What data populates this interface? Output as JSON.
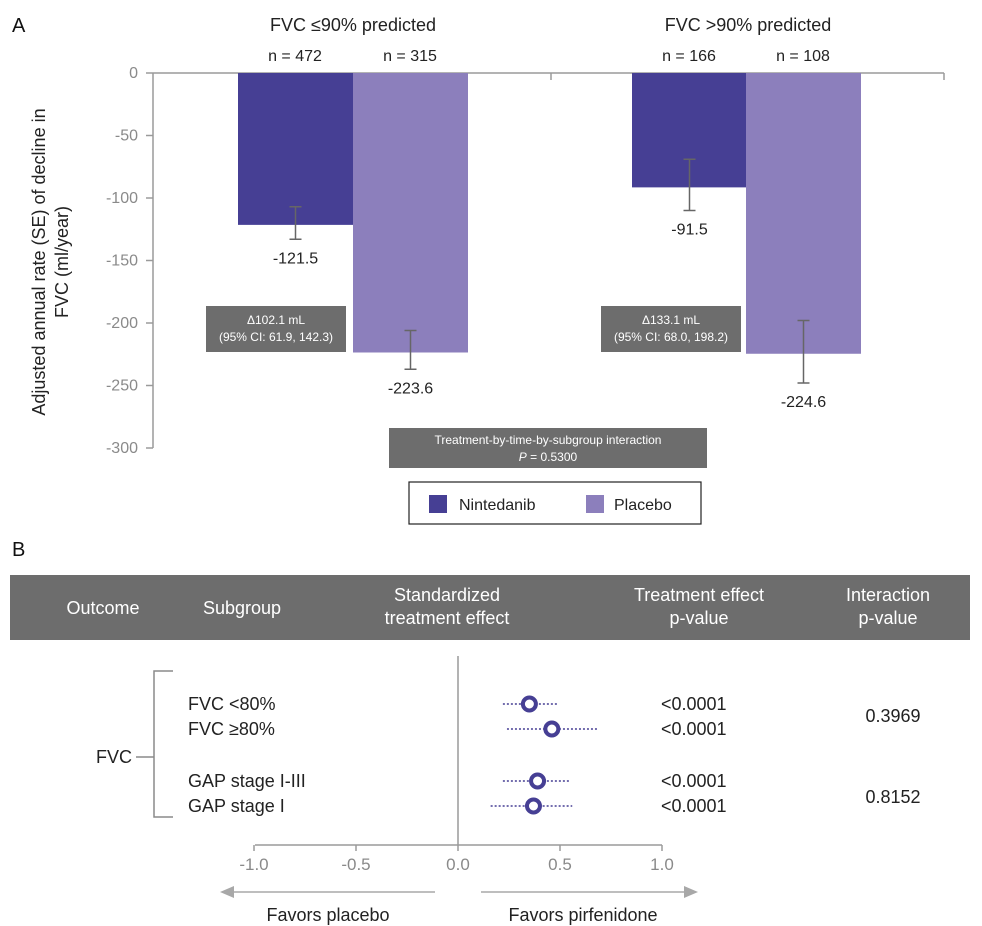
{
  "panel_a": {
    "letter": "A",
    "colors": {
      "nintedanib": "#463f94",
      "placebo": "#8c7fbc",
      "axis": "#9a9a9a",
      "box": "#6d6d6d",
      "errorbar": "#666666"
    },
    "interaction": {
      "line1": "Treatment-by-time-by-subgroup interaction",
      "p_italic": "P",
      "p_rest": " = 0.5300"
    },
    "legend": {
      "nintedanib": "Nintedanib",
      "placebo": "Placebo"
    }
  },
  "panel_b": {
    "letter": "B",
    "colors": {
      "header_bg": "#6d6d6d",
      "marker": "#463f94",
      "axis": "#9a9a9a"
    },
    "headers": {
      "outcome": "Outcome",
      "subgroup": "Subgroup",
      "effect_line1": "Standardized",
      "effect_line2": "treatment effect",
      "pvalue_line1": "Treatment effect",
      "pvalue_line2": "p-value",
      "interaction_line1": "Interaction",
      "interaction_line2": "p-value"
    },
    "outcome": "FVC",
    "favors_left": "Favors placebo",
    "favors_right": "Favors pirfenidone"
  },
  "chart_data": [
    {
      "type": "bar",
      "ylabel": "Adjusted annual rate (SE) of decline in FVC (ml/year)",
      "ylim": [
        -300,
        0
      ],
      "yticks": [
        "0",
        "-50",
        "-100",
        "-150",
        "-200",
        "-250",
        "-300"
      ],
      "yticks_values": [
        0,
        -50,
        -100,
        -150,
        -200,
        -250,
        -300
      ],
      "groups": [
        {
          "title": "FVC ≤90% predicted",
          "bars": [
            {
              "series": "Nintedanib",
              "n_label": "n = 472",
              "value": -121.5,
              "value_label": "-121.5",
              "se_low": -133,
              "se_high": -107
            },
            {
              "series": "Placebo",
              "n_label": "n = 315",
              "value": -223.6,
              "value_label": "-223.6",
              "se_low": -237,
              "se_high": -206
            }
          ],
          "delta_line1": "Δ102.1 mL",
          "delta_line2": "(95% CI: 61.9, 142.3)"
        },
        {
          "title": "FVC >90% predicted",
          "bars": [
            {
              "series": "Nintedanib",
              "n_label": "n = 166",
              "value": -91.5,
              "value_label": "-91.5",
              "se_low": -110,
              "se_high": -69
            },
            {
              "series": "Placebo",
              "n_label": "n = 108",
              "value": -224.6,
              "value_label": "-224.6",
              "se_low": -248,
              "se_high": -198
            }
          ],
          "delta_line1": "Δ133.1 mL",
          "delta_line2": "(95% CI: 68.0, 198.2)"
        }
      ],
      "series": [
        {
          "name": "Nintedanib"
        },
        {
          "name": "Placebo"
        }
      ],
      "legend": "bottom-center"
    },
    {
      "type": "scatter",
      "xlim": [
        -1.0,
        1.0
      ],
      "xticks": [
        "-1.0",
        "-0.5",
        "0.0",
        "0.5",
        "1.0"
      ],
      "xticks_values": [
        -1.0,
        -0.5,
        0.0,
        0.5,
        1.0
      ],
      "rows": [
        {
          "subgroup": "FVC <80%",
          "estimate": 0.35,
          "ci": [
            0.22,
            0.49
          ],
          "pvalue": "<0.0001"
        },
        {
          "subgroup": "FVC ≥80%",
          "estimate": 0.46,
          "ci": [
            0.24,
            0.69
          ],
          "pvalue": "<0.0001"
        },
        {
          "subgroup": "GAP stage I-III",
          "estimate": 0.39,
          "ci": [
            0.22,
            0.55
          ],
          "pvalue": "<0.0001"
        },
        {
          "subgroup": "GAP stage I",
          "estimate": 0.37,
          "ci": [
            0.16,
            0.56
          ],
          "pvalue": "<0.0001"
        }
      ],
      "interaction_pvalues": [
        "0.3969",
        "0.8152"
      ]
    }
  ]
}
